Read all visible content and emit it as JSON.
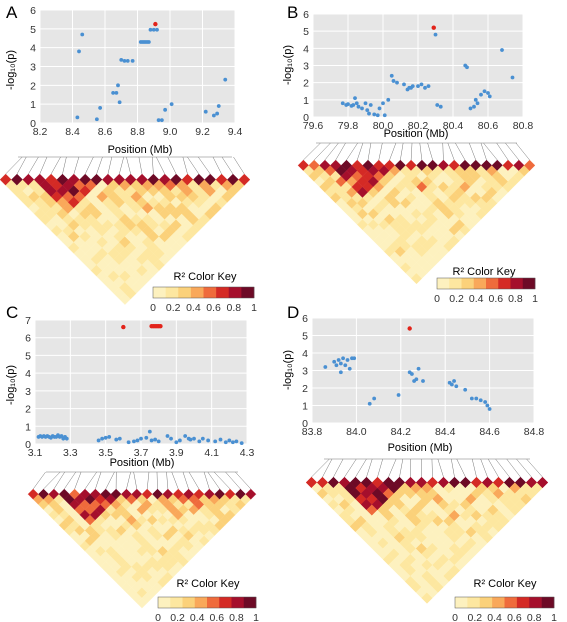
{
  "colors": {
    "plot_bg": "#e6e6e6",
    "grid": "#ffffff",
    "point": "#4a90d2",
    "lead_point": "#e2231a",
    "ld_scale": [
      "#fdf1bf",
      "#fde7a0",
      "#fbd17a",
      "#f9a85a",
      "#ef6b3c",
      "#d42a25",
      "#a50f2c",
      "#6d0a26"
    ]
  },
  "panels": [
    {
      "letter": "A",
      "ylabel": "-log₁₀(p)",
      "xlabel": "Position (Mb)",
      "key_title": "R² Color Key",
      "key_ticks": [
        "0",
        "0.2",
        "0.4",
        "0.6",
        "0.8",
        "1"
      ],
      "chart_data": {
        "type": "scatter",
        "xlim": [
          8.2,
          9.4
        ],
        "ylim": [
          0,
          6
        ],
        "xticks": [
          "8.2",
          "8.4",
          "8.6",
          "8.8",
          "9.0",
          "9.2",
          "9.4"
        ],
        "yticks": [
          "0",
          "1",
          "2",
          "3",
          "4",
          "5",
          "6"
        ],
        "grid": true,
        "lead": [
          [
            8.91,
            5.25
          ]
        ],
        "points": [
          [
            8.43,
            0.3
          ],
          [
            8.44,
            3.8
          ],
          [
            8.46,
            4.7
          ],
          [
            8.55,
            0.2
          ],
          [
            8.57,
            0.8
          ],
          [
            8.65,
            1.6
          ],
          [
            8.67,
            1.6
          ],
          [
            8.68,
            2.0
          ],
          [
            8.69,
            1.1
          ],
          [
            8.7,
            3.35
          ],
          [
            8.72,
            3.3
          ],
          [
            8.74,
            3.3
          ],
          [
            8.77,
            3.3
          ],
          [
            8.82,
            4.3
          ],
          [
            8.83,
            4.3
          ],
          [
            8.84,
            4.3
          ],
          [
            8.85,
            4.3
          ],
          [
            8.86,
            4.3
          ],
          [
            8.87,
            4.3
          ],
          [
            8.88,
            4.95
          ],
          [
            8.9,
            4.95
          ],
          [
            8.92,
            4.95
          ],
          [
            8.93,
            0.15
          ],
          [
            8.95,
            0.15
          ],
          [
            8.97,
            0.7
          ],
          [
            9.01,
            1.0
          ],
          [
            9.22,
            0.6
          ],
          [
            9.27,
            0.4
          ],
          [
            9.29,
            0.5
          ],
          [
            9.3,
            0.9
          ],
          [
            9.34,
            2.3
          ]
        ]
      },
      "ld_seed": 11
    },
    {
      "letter": "B",
      "ylabel": "-log₁₀(p)",
      "xlabel": "Position (Mb)",
      "key_title": "R² Color Key",
      "key_ticks": [
        "0",
        "0.2",
        "0.4",
        "0.6",
        "0.8",
        "1"
      ],
      "chart_data": {
        "type": "scatter",
        "xlim": [
          79.6,
          80.8
        ],
        "ylim": [
          0,
          6
        ],
        "xticks": [
          "79.6",
          "79.8",
          "80.0",
          "80.2",
          "80.4",
          "80.6",
          "80.8"
        ],
        "yticks": [
          "0",
          "1",
          "2",
          "3",
          "4",
          "5",
          "6"
        ],
        "grid": true,
        "lead": [
          [
            80.29,
            5.2
          ]
        ],
        "points": [
          [
            79.77,
            0.8
          ],
          [
            79.79,
            0.7
          ],
          [
            79.8,
            0.75
          ],
          [
            79.82,
            0.65
          ],
          [
            79.83,
            0.7
          ],
          [
            79.84,
            1.1
          ],
          [
            79.85,
            0.8
          ],
          [
            79.86,
            0.6
          ],
          [
            79.88,
            0.5
          ],
          [
            79.9,
            0.8
          ],
          [
            79.91,
            0.4
          ],
          [
            79.92,
            0.2
          ],
          [
            79.93,
            0.7
          ],
          [
            79.95,
            0.15
          ],
          [
            79.97,
            0.1
          ],
          [
            79.98,
            0.5
          ],
          [
            80.0,
            0.8
          ],
          [
            80.01,
            0.1
          ],
          [
            80.03,
            1.0
          ],
          [
            80.05,
            2.4
          ],
          [
            80.06,
            2.1
          ],
          [
            80.08,
            2.0
          ],
          [
            80.12,
            1.9
          ],
          [
            80.14,
            1.6
          ],
          [
            80.15,
            1.7
          ],
          [
            80.16,
            1.7
          ],
          [
            80.17,
            1.8
          ],
          [
            80.2,
            1.8
          ],
          [
            80.22,
            1.9
          ],
          [
            80.24,
            1.7
          ],
          [
            80.26,
            1.8
          ],
          [
            80.3,
            4.8
          ],
          [
            80.31,
            0.7
          ],
          [
            80.33,
            0.6
          ],
          [
            80.47,
            3.0
          ],
          [
            80.48,
            2.9
          ],
          [
            80.5,
            0.5
          ],
          [
            80.52,
            0.6
          ],
          [
            80.53,
            1.0
          ],
          [
            80.54,
            0.8
          ],
          [
            80.56,
            1.3
          ],
          [
            80.58,
            1.5
          ],
          [
            80.6,
            1.4
          ],
          [
            80.61,
            1.2
          ],
          [
            80.68,
            3.9
          ],
          [
            80.74,
            2.3
          ]
        ]
      },
      "ld_seed": 23
    },
    {
      "letter": "C",
      "ylabel": "-log₁₀(p)",
      "xlabel": "Position (Mb)",
      "key_title": "R² Color Key",
      "key_ticks": [
        "0",
        "0.2",
        "0.4",
        "0.6",
        "0.8",
        "1"
      ],
      "chart_data": {
        "type": "scatter",
        "xlim": [
          3.1,
          4.3
        ],
        "ylim": [
          0,
          7
        ],
        "xticks": [
          "3.1",
          "3.3",
          "3.5",
          "3.7",
          "3.9",
          "4.1",
          "4.3"
        ],
        "yticks": [
          "0",
          "1",
          "2",
          "3",
          "4",
          "5",
          "6",
          "7"
        ],
        "grid": true,
        "lead": [
          [
            3.6,
            6.6
          ],
          [
            3.76,
            6.65
          ],
          [
            3.77,
            6.65
          ],
          [
            3.78,
            6.65
          ],
          [
            3.79,
            6.65
          ],
          [
            3.8,
            6.65
          ],
          [
            3.81,
            6.65
          ]
        ],
        "points": [
          [
            3.12,
            0.4
          ],
          [
            3.13,
            0.45
          ],
          [
            3.14,
            0.4
          ],
          [
            3.15,
            0.45
          ],
          [
            3.16,
            0.4
          ],
          [
            3.17,
            0.45
          ],
          [
            3.18,
            0.4
          ],
          [
            3.19,
            0.35
          ],
          [
            3.2,
            0.45
          ],
          [
            3.21,
            0.4
          ],
          [
            3.22,
            0.4
          ],
          [
            3.23,
            0.5
          ],
          [
            3.24,
            0.4
          ],
          [
            3.25,
            0.45
          ],
          [
            3.26,
            0.3
          ],
          [
            3.27,
            0.4
          ],
          [
            3.28,
            0.3
          ],
          [
            3.46,
            0.2
          ],
          [
            3.48,
            0.3
          ],
          [
            3.5,
            0.35
          ],
          [
            3.52,
            0.4
          ],
          [
            3.56,
            0.25
          ],
          [
            3.58,
            0.3
          ],
          [
            3.63,
            0.1
          ],
          [
            3.66,
            0.15
          ],
          [
            3.68,
            0.2
          ],
          [
            3.7,
            0.3
          ],
          [
            3.73,
            0.35
          ],
          [
            3.75,
            0.7
          ],
          [
            3.76,
            0.2
          ],
          [
            3.78,
            0.25
          ],
          [
            3.8,
            0.15
          ],
          [
            3.85,
            0.45
          ],
          [
            3.87,
            0.3
          ],
          [
            3.9,
            0.1
          ],
          [
            3.92,
            0.2
          ],
          [
            3.95,
            0.45
          ],
          [
            3.97,
            0.3
          ],
          [
            3.98,
            0.25
          ],
          [
            4.0,
            0.3
          ],
          [
            4.03,
            0.15
          ],
          [
            4.05,
            0.3
          ],
          [
            4.08,
            0.2
          ],
          [
            4.12,
            0.15
          ],
          [
            4.15,
            0.25
          ],
          [
            4.18,
            0.1
          ],
          [
            4.2,
            0.2
          ],
          [
            4.22,
            0.1
          ],
          [
            4.24,
            0.15
          ],
          [
            4.27,
            0.05
          ]
        ]
      },
      "ld_seed": 37
    },
    {
      "letter": "D",
      "ylabel": "-log₁₀(p)",
      "xlabel": "Position (Mb)",
      "key_title": "R² Color Key",
      "key_ticks": [
        "0",
        "0.2",
        "0.4",
        "0.6",
        "0.8",
        "1"
      ],
      "chart_data": {
        "type": "scatter",
        "xlim": [
          83.8,
          84.8
        ],
        "ylim": [
          0,
          6
        ],
        "xticks": [
          "83.8",
          "84.0",
          "84.2",
          "84.4",
          "84.6",
          "84.8"
        ],
        "yticks": [
          "0",
          "1",
          "2",
          "3",
          "4",
          "5",
          "6"
        ],
        "grid": true,
        "lead": [
          [
            84.24,
            5.4
          ]
        ],
        "points": [
          [
            83.86,
            3.2
          ],
          [
            83.9,
            3.5
          ],
          [
            83.91,
            3.3
          ],
          [
            83.92,
            3.6
          ],
          [
            83.93,
            3.4
          ],
          [
            83.93,
            2.9
          ],
          [
            83.94,
            3.7
          ],
          [
            83.95,
            3.3
          ],
          [
            83.96,
            3.6
          ],
          [
            83.97,
            3.1
          ],
          [
            83.98,
            3.7
          ],
          [
            83.99,
            3.7
          ],
          [
            84.06,
            1.1
          ],
          [
            84.08,
            1.4
          ],
          [
            84.19,
            1.6
          ],
          [
            84.24,
            2.9
          ],
          [
            84.25,
            2.8
          ],
          [
            84.26,
            2.4
          ],
          [
            84.27,
            2.5
          ],
          [
            84.28,
            3.1
          ],
          [
            84.3,
            2.4
          ],
          [
            84.42,
            2.3
          ],
          [
            84.43,
            2.2
          ],
          [
            84.44,
            2.4
          ],
          [
            84.45,
            2.1
          ],
          [
            84.49,
            1.9
          ],
          [
            84.52,
            1.4
          ],
          [
            84.54,
            1.4
          ],
          [
            84.56,
            1.3
          ],
          [
            84.58,
            1.2
          ],
          [
            84.59,
            1.0
          ],
          [
            84.6,
            0.8
          ]
        ]
      },
      "ld_seed": 53
    }
  ]
}
